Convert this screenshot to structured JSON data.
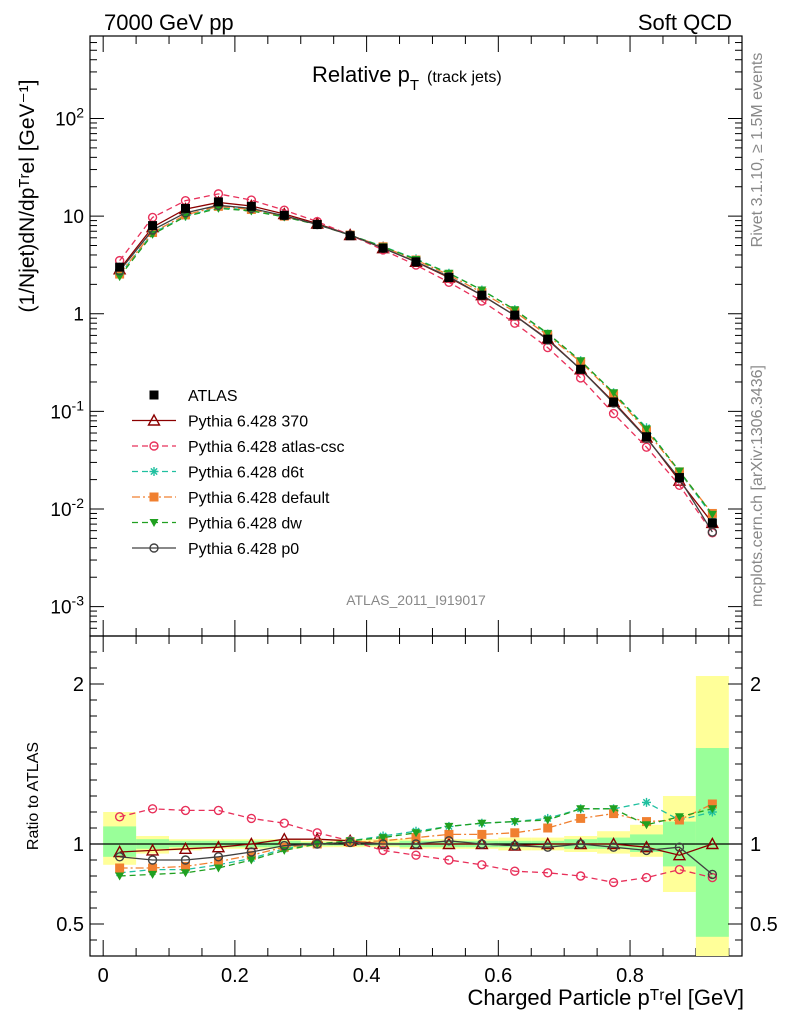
{
  "header": {
    "left": "7000 GeV pp",
    "right": "Soft QCD"
  },
  "side": {
    "rivet": "Rivet 3.1.10, ≥ 1.5M events",
    "mcplots": "mcplots.cern.ch [arXiv:1306.3436]"
  },
  "analysis_id": "ATLAS_2011_I919017",
  "chart_data": [
    {
      "type": "line",
      "panel": "main",
      "title": "Relative p",
      "title_sub": "T",
      "title_suffix": "(track jets)",
      "ylabel": "(1/Njet)dN/dpᵀʳel [GeV⁻¹]",
      "yscale": "log",
      "ylim": [
        0.0005,
        700
      ],
      "ytick_labels": [
        "10^-3",
        "10^-2",
        "10^-1",
        "1",
        "10",
        "10^2"
      ],
      "xlim": [
        -0.02,
        0.97
      ],
      "x": [
        0.025,
        0.075,
        0.125,
        0.175,
        0.225,
        0.275,
        0.325,
        0.375,
        0.425,
        0.475,
        0.525,
        0.575,
        0.625,
        0.675,
        0.725,
        0.775,
        0.825,
        0.875,
        0.925
      ],
      "legend_position": "center-left",
      "series": [
        {
          "name": "ATLAS",
          "color": "#000000",
          "marker": "square",
          "line": "none",
          "values": [
            3.0,
            8.0,
            12.0,
            14.0,
            12.6,
            10.2,
            8.2,
            6.3,
            4.7,
            3.4,
            2.35,
            1.55,
            0.97,
            0.55,
            0.27,
            0.125,
            0.055,
            0.021,
            0.0072
          ]
        },
        {
          "name": "Pythia 6.428 370",
          "color": "#8b0000",
          "marker": "triangle",
          "line": "solid",
          "values": [
            2.85,
            7.7,
            11.8,
            13.8,
            12.7,
            10.5,
            8.4,
            6.4,
            4.7,
            3.4,
            2.35,
            1.55,
            0.96,
            0.55,
            0.27,
            0.125,
            0.054,
            0.0195,
            0.0072
          ]
        },
        {
          "name": "Pythia 6.428 atlas-csc",
          "color": "#e8305a",
          "marker": "circle-open",
          "line": "dashed",
          "values": [
            3.5,
            9.7,
            14.4,
            16.9,
            14.6,
            11.5,
            8.8,
            6.4,
            4.5,
            3.15,
            2.1,
            1.35,
            0.8,
            0.45,
            0.22,
            0.095,
            0.043,
            0.0175,
            0.0057
          ]
        },
        {
          "name": "Pythia 6.428 d6t",
          "color": "#20c0a0",
          "marker": "star",
          "line": "dashed",
          "values": [
            2.5,
            6.7,
            10.0,
            12.3,
            11.5,
            9.9,
            8.2,
            6.4,
            4.9,
            3.65,
            2.6,
            1.75,
            1.1,
            0.62,
            0.33,
            0.155,
            0.068,
            0.024,
            0.0085
          ]
        },
        {
          "name": "Pythia 6.428 default",
          "color": "#f08030",
          "marker": "square",
          "line": "dashdot",
          "values": [
            2.55,
            6.8,
            10.3,
            12.6,
            11.7,
            10.0,
            8.2,
            6.4,
            4.85,
            3.55,
            2.5,
            1.65,
            1.05,
            0.6,
            0.32,
            0.15,
            0.063,
            0.024,
            0.009
          ]
        },
        {
          "name": "Pythia 6.428 dw",
          "color": "#20a020",
          "marker": "triangle-down",
          "line": "dashed",
          "values": [
            2.4,
            6.5,
            9.9,
            12.0,
            11.3,
            9.8,
            8.2,
            6.4,
            4.85,
            3.6,
            2.6,
            1.75,
            1.1,
            0.63,
            0.33,
            0.155,
            0.066,
            0.0245,
            0.0088
          ]
        },
        {
          "name": "Pythia 6.428 p0",
          "color": "#404040",
          "marker": "circle-open",
          "line": "solid",
          "values": [
            2.75,
            7.2,
            10.8,
            12.9,
            12.0,
            10.1,
            8.2,
            6.4,
            4.7,
            3.4,
            2.4,
            1.55,
            0.96,
            0.54,
            0.27,
            0.122,
            0.053,
            0.0205,
            0.0058
          ]
        }
      ]
    },
    {
      "type": "line",
      "panel": "ratio",
      "ylabel": "Ratio to ATLAS",
      "xlabel": "Charged Particle pᵀʳel [GeV]",
      "ylim": [
        0.3,
        2.3
      ],
      "yticks": [
        "0.5",
        "1",
        "2"
      ],
      "xlim": [
        -0.02,
        0.97
      ],
      "xticks": [
        "0",
        "0.2",
        "0.4",
        "0.6",
        "0.8"
      ],
      "x": [
        0.025,
        0.075,
        0.125,
        0.175,
        0.225,
        0.275,
        0.325,
        0.375,
        0.425,
        0.475,
        0.525,
        0.575,
        0.625,
        0.675,
        0.725,
        0.775,
        0.825,
        0.875,
        0.925
      ],
      "bands": {
        "edges": [
          0.0,
          0.05,
          0.1,
          0.15,
          0.2,
          0.25,
          0.3,
          0.35,
          0.4,
          0.45,
          0.5,
          0.55,
          0.6,
          0.65,
          0.7,
          0.75,
          0.8,
          0.85,
          0.9,
          0.95
        ],
        "yellow": [
          [
            0.87,
            1.2
          ],
          [
            0.94,
            1.05
          ],
          [
            0.96,
            1.03
          ],
          [
            0.97,
            1.03
          ],
          [
            0.97,
            1.03
          ],
          [
            0.97,
            1.03
          ],
          [
            0.98,
            1.02
          ],
          [
            0.98,
            1.03
          ],
          [
            0.98,
            1.03
          ],
          [
            0.97,
            1.03
          ],
          [
            0.97,
            1.03
          ],
          [
            0.97,
            1.03
          ],
          [
            0.96,
            1.04
          ],
          [
            0.96,
            1.04
          ],
          [
            0.95,
            1.05
          ],
          [
            0.94,
            1.08
          ],
          [
            0.92,
            1.12
          ],
          [
            0.7,
            1.3
          ],
          [
            0.3,
            2.05
          ]
        ],
        "green": [
          [
            0.92,
            1.11
          ],
          [
            0.97,
            1.03
          ],
          [
            0.98,
            1.02
          ],
          [
            0.98,
            1.02
          ],
          [
            0.98,
            1.02
          ],
          [
            0.98,
            1.02
          ],
          [
            0.99,
            1.01
          ],
          [
            0.99,
            1.01
          ],
          [
            0.99,
            1.01
          ],
          [
            0.98,
            1.02
          ],
          [
            0.98,
            1.02
          ],
          [
            0.98,
            1.02
          ],
          [
            0.98,
            1.02
          ],
          [
            0.98,
            1.02
          ],
          [
            0.97,
            1.03
          ],
          [
            0.97,
            1.04
          ],
          [
            0.95,
            1.06
          ],
          [
            0.86,
            1.14
          ],
          [
            0.42,
            1.6
          ]
        ]
      },
      "series": [
        {
          "name": "Pythia 6.428 370",
          "color": "#8b0000",
          "marker": "triangle",
          "line": "solid",
          "values": [
            0.95,
            0.96,
            0.97,
            0.98,
            1.0,
            1.03,
            1.03,
            1.02,
            1.0,
            1.0,
            1.0,
            1.0,
            0.99,
            1.0,
            1.0,
            1.0,
            0.98,
            0.93,
            1.0
          ]
        },
        {
          "name": "Pythia 6.428 atlas-csc",
          "color": "#e8305a",
          "marker": "circle-open",
          "line": "dashed",
          "values": [
            1.17,
            1.22,
            1.21,
            1.21,
            1.16,
            1.13,
            1.07,
            1.02,
            0.96,
            0.93,
            0.9,
            0.87,
            0.83,
            0.82,
            0.8,
            0.76,
            0.79,
            0.84,
            0.79
          ]
        },
        {
          "name": "Pythia 6.428 d6t",
          "color": "#20c0a0",
          "marker": "star",
          "line": "dashed",
          "values": [
            0.82,
            0.84,
            0.84,
            0.87,
            0.91,
            0.97,
            1.0,
            1.02,
            1.05,
            1.08,
            1.11,
            1.13,
            1.14,
            1.16,
            1.22,
            1.22,
            1.26,
            1.15,
            1.2
          ]
        },
        {
          "name": "Pythia 6.428 default",
          "color": "#f08030",
          "marker": "square",
          "line": "dashdot",
          "values": [
            0.85,
            0.85,
            0.86,
            0.89,
            0.93,
            0.98,
            1.0,
            1.01,
            1.02,
            1.04,
            1.06,
            1.06,
            1.07,
            1.1,
            1.16,
            1.19,
            1.14,
            1.15,
            1.25
          ]
        },
        {
          "name": "Pythia 6.428 dw",
          "color": "#20a020",
          "marker": "triangle-down",
          "line": "dashed",
          "values": [
            0.8,
            0.81,
            0.82,
            0.85,
            0.9,
            0.96,
            1.0,
            1.02,
            1.04,
            1.07,
            1.11,
            1.13,
            1.14,
            1.15,
            1.22,
            1.22,
            1.12,
            1.17,
            1.22
          ]
        },
        {
          "name": "Pythia 6.428 p0",
          "color": "#404040",
          "marker": "circle-open",
          "line": "solid",
          "values": [
            0.92,
            0.9,
            0.9,
            0.92,
            0.95,
            0.99,
            1.0,
            1.01,
            1.0,
            1.0,
            1.02,
            1.0,
            0.99,
            0.98,
            1.0,
            0.98,
            0.96,
            0.98,
            0.81
          ]
        }
      ]
    }
  ]
}
